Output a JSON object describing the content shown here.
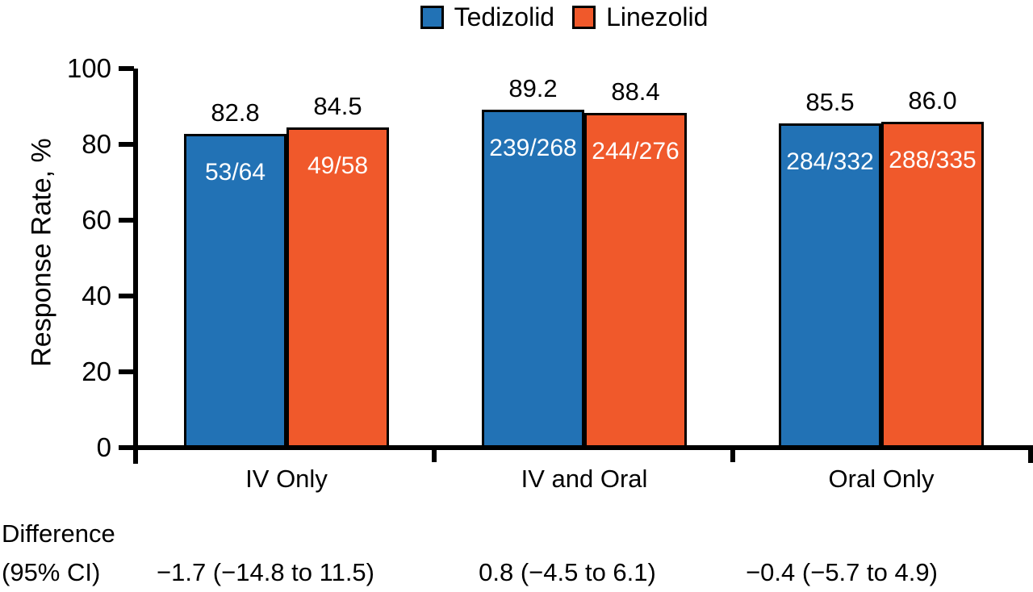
{
  "chart_data": {
    "type": "bar",
    "title": "",
    "categories": [
      "IV Only",
      "IV and Oral",
      "Oral Only"
    ],
    "series": [
      {
        "name": "Tedizolid",
        "color": "#2272B5",
        "values": [
          82.8,
          89.2,
          85.5
        ],
        "value_labels": [
          "82.8",
          "89.2",
          "85.5"
        ],
        "fractions": [
          "53/64",
          "239/268",
          "284/332"
        ]
      },
      {
        "name": "Linezolid",
        "color": "#F0592B",
        "values": [
          84.5,
          88.4,
          86.0
        ],
        "value_labels": [
          "84.5",
          "88.4",
          "86.0"
        ],
        "fractions": [
          "49/58",
          "244/276",
          "288/335"
        ]
      }
    ],
    "xlabel": "",
    "ylabel": "Response Rate, %",
    "ylim": [
      0,
      100
    ],
    "yticks": [
      "0",
      "20",
      "40",
      "60",
      "80",
      "100"
    ],
    "grid": false,
    "legend_position": "top"
  },
  "difference_row": {
    "label_line1": "Difference",
    "label_line2": "(95% CI)",
    "values": [
      "−1.7 (−14.8 to 11.5)",
      "0.8 (−4.5 to 6.1)",
      "−0.4 (−5.7 to 4.9)"
    ]
  },
  "colors": {
    "tedizolid": "#2272B5",
    "linezolid": "#F0592B",
    "axis": "#000000",
    "background": "#FFFFFF",
    "bar_inner_text": "#FFFFFF"
  }
}
